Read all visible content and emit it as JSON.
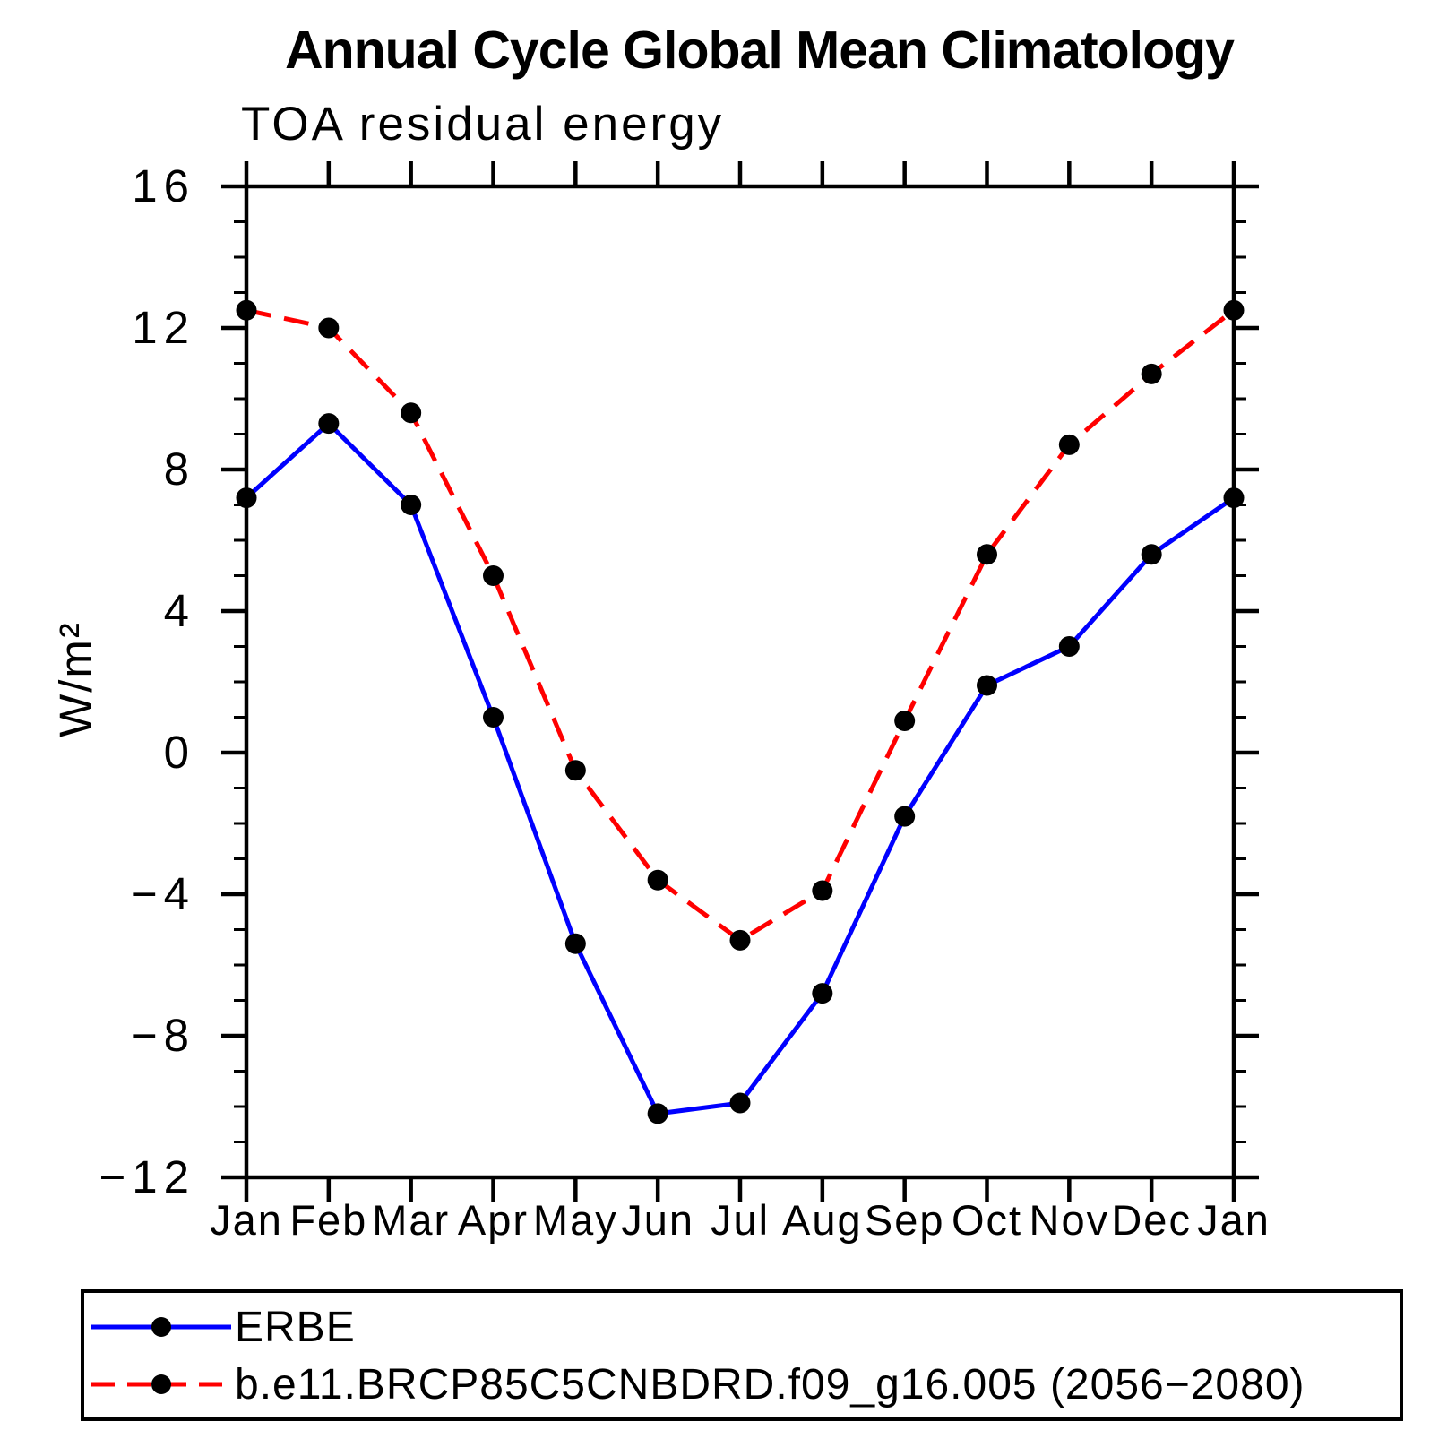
{
  "chart_data": {
    "type": "line",
    "title": "Annual Cycle Global Mean Climatology",
    "subtitle": "TOA residual energy",
    "ylabel": "W/m²",
    "x_categories": [
      "Jan",
      "Feb",
      "Mar",
      "Apr",
      "May",
      "Jun",
      "Jul",
      "Aug",
      "Sep",
      "Oct",
      "Nov",
      "Dec",
      "Jan"
    ],
    "ylim": [
      -12,
      16
    ],
    "y_major_tick_values": [
      16,
      12,
      8,
      4,
      0,
      -4,
      -8,
      -12
    ],
    "y_major_tick_labels": [
      "16",
      "12",
      "8",
      "4",
      "0",
      "−4",
      "−8",
      "−12"
    ],
    "y_minor_step": 1,
    "grid": false,
    "legend_position": "bottom",
    "series": [
      {
        "name": "ERBE",
        "color": "#0000ff",
        "style": "solid",
        "marker": "circle",
        "marker_color": "#000000",
        "values": [
          7.2,
          9.3,
          7.0,
          1.0,
          -5.4,
          -10.2,
          -9.9,
          -6.8,
          -1.8,
          1.9,
          3.0,
          5.6,
          7.2
        ]
      },
      {
        "name": "b.e11.BRCP85C5CNBDRD.f09_g16.005 (2056−2080)",
        "color": "#ff0000",
        "style": "dashed",
        "marker": "circle",
        "marker_color": "#000000",
        "values": [
          12.5,
          12.0,
          9.6,
          5.0,
          -0.5,
          -3.6,
          -5.3,
          -3.9,
          0.9,
          5.6,
          8.7,
          10.7,
          12.5
        ]
      }
    ]
  }
}
